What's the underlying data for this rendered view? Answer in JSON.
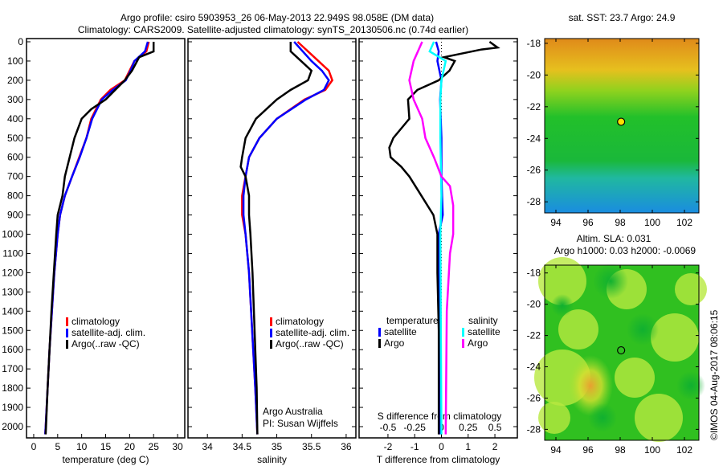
{
  "title_line1": "Argo profile: csiro 5903953_26 06-May-2013 22.949S 98.058E (DM data)",
  "title_line2": "Climatology: CARS2009. Satellite-adjusted climatology: synTS_20130506.nc (0.74d earlier)",
  "credit": "Argo Australia",
  "pi": "PI: Susan Wijffels",
  "timestamp": "©IMOS 04-Aug-2017 08:06:15",
  "colors": {
    "clim": "#ff0000",
    "sat": "#0000ff",
    "argo": "#000000",
    "sal_sat": "#00ffff",
    "sal_argo": "#ff00ff"
  },
  "chart_data": [
    {
      "type": "line",
      "id": "temp",
      "xlabel": "temperature (deg C)",
      "ylabel": "",
      "xlim": [
        -1.5,
        31.5
      ],
      "ylim": [
        2040,
        0
      ],
      "xticks": [
        0,
        5,
        10,
        15,
        20,
        25,
        30
      ],
      "yticks": [
        0,
        100,
        200,
        300,
        400,
        500,
        600,
        700,
        800,
        900,
        1000,
        1100,
        1200,
        1300,
        1400,
        1500,
        1600,
        1700,
        1800,
        1900,
        2000
      ],
      "legend": [
        "climatology",
        "satellite-adj. clim.",
        "Argo(..raw -QC)"
      ],
      "series": [
        {
          "name": "climatology",
          "color": "clim",
          "points": [
            [
              24.0,
              0
            ],
            [
              23.5,
              50
            ],
            [
              21,
              100
            ],
            [
              20,
              150
            ],
            [
              19,
              200
            ],
            [
              16,
              250
            ],
            [
              14,
              300
            ],
            [
              12,
              400
            ],
            [
              11,
              500
            ],
            [
              9.5,
              600
            ],
            [
              8,
              700
            ],
            [
              6.5,
              800
            ],
            [
              5.5,
              900
            ],
            [
              5,
              1000
            ],
            [
              4.3,
              1200
            ],
            [
              3.8,
              1400
            ],
            [
              3.3,
              1600
            ],
            [
              2.9,
              1800
            ],
            [
              2.5,
              2000
            ],
            [
              2.4,
              2040
            ]
          ]
        },
        {
          "name": "satellite-adj. clim.",
          "color": "sat",
          "points": [
            [
              23.8,
              0
            ],
            [
              23.2,
              50
            ],
            [
              21,
              100
            ],
            [
              20.2,
              150
            ],
            [
              19.2,
              200
            ],
            [
              16.5,
              250
            ],
            [
              14.2,
              300
            ],
            [
              12.2,
              400
            ],
            [
              11,
              500
            ],
            [
              9.6,
              600
            ],
            [
              8,
              700
            ],
            [
              6.5,
              800
            ],
            [
              5.5,
              900
            ],
            [
              5,
              1000
            ],
            [
              4.3,
              1200
            ],
            [
              3.8,
              1400
            ],
            [
              3.3,
              1600
            ],
            [
              2.9,
              1800
            ],
            [
              2.5,
              2000
            ],
            [
              2.4,
              2040
            ]
          ]
        },
        {
          "name": "Argo(..raw -QC)",
          "color": "argo",
          "points": [
            [
              25,
              0
            ],
            [
              25,
              50
            ],
            [
              22,
              80
            ],
            [
              20.5,
              150
            ],
            [
              19,
              200
            ],
            [
              17,
              250
            ],
            [
              15,
              300
            ],
            [
              12,
              350
            ],
            [
              10,
              400
            ],
            [
              8.5,
              500
            ],
            [
              7.5,
              600
            ],
            [
              6.5,
              700
            ],
            [
              6,
              800
            ],
            [
              5,
              900
            ],
            [
              4.7,
              1000
            ],
            [
              4.2,
              1200
            ],
            [
              3.7,
              1400
            ],
            [
              3.3,
              1600
            ],
            [
              2.9,
              1800
            ],
            [
              2.5,
              2040
            ]
          ]
        }
      ]
    },
    {
      "type": "line",
      "id": "sal",
      "xlabel": "salinity",
      "ylabel": "",
      "xlim": [
        33.72,
        36.14
      ],
      "ylim": [
        2040,
        0
      ],
      "xticks": [
        34,
        34.5,
        35,
        35.5,
        36
      ],
      "legend": [
        "climatology",
        "satellite-adj. clim.",
        "Argo(..raw -QC)"
      ],
      "series": [
        {
          "name": "climatology",
          "color": "clim",
          "points": [
            [
              35.3,
              0
            ],
            [
              35.6,
              100
            ],
            [
              35.75,
              150
            ],
            [
              35.8,
              200
            ],
            [
              35.7,
              250
            ],
            [
              35.4,
              300
            ],
            [
              35.0,
              400
            ],
            [
              34.75,
              500
            ],
            [
              34.6,
              600
            ],
            [
              34.55,
              700
            ],
            [
              34.5,
              800
            ],
            [
              34.5,
              900
            ],
            [
              34.55,
              1000
            ],
            [
              34.6,
              1200
            ],
            [
              34.63,
              1400
            ],
            [
              34.66,
              1600
            ],
            [
              34.69,
              1800
            ],
            [
              34.72,
              2040
            ]
          ]
        },
        {
          "name": "satellite-adj. clim.",
          "color": "sat",
          "points": [
            [
              35.25,
              0
            ],
            [
              35.5,
              100
            ],
            [
              35.65,
              150
            ],
            [
              35.75,
              200
            ],
            [
              35.68,
              250
            ],
            [
              35.42,
              300
            ],
            [
              35.0,
              400
            ],
            [
              34.75,
              500
            ],
            [
              34.6,
              600
            ],
            [
              34.55,
              700
            ],
            [
              34.52,
              800
            ],
            [
              34.52,
              900
            ],
            [
              34.55,
              1000
            ],
            [
              34.6,
              1200
            ],
            [
              34.63,
              1400
            ],
            [
              34.66,
              1600
            ],
            [
              34.69,
              1800
            ],
            [
              34.72,
              2040
            ]
          ]
        },
        {
          "name": "Argo(..raw -QC)",
          "color": "argo",
          "points": [
            [
              35.2,
              0
            ],
            [
              35.2,
              50
            ],
            [
              35.35,
              100
            ],
            [
              35.5,
              150
            ],
            [
              35.45,
              200
            ],
            [
              35.2,
              250
            ],
            [
              35.0,
              300
            ],
            [
              34.7,
              400
            ],
            [
              34.55,
              500
            ],
            [
              34.5,
              600
            ],
            [
              34.48,
              650
            ],
            [
              34.55,
              700
            ],
            [
              34.6,
              800
            ],
            [
              34.6,
              900
            ],
            [
              34.62,
              1000
            ],
            [
              34.65,
              1200
            ],
            [
              34.67,
              1400
            ],
            [
              34.69,
              1600
            ],
            [
              34.71,
              1800
            ],
            [
              34.72,
              2040
            ]
          ]
        }
      ]
    },
    {
      "type": "line",
      "id": "diff",
      "xlabel": "T difference from climatology",
      "x2label": "S difference from climatology",
      "xlim": [
        -3.08,
        2.84
      ],
      "ylim": [
        2040,
        0
      ],
      "xticks": [
        -2,
        -1,
        0,
        1,
        2
      ],
      "x2ticks": [
        -0.5,
        -0.25,
        0,
        0.25,
        0.5
      ],
      "legend_t_title": "temperature",
      "legend_s_title": "salinity",
      "legend": [
        "satellite",
        "Argo",
        "satellite",
        "Argo"
      ],
      "series": [
        {
          "name": "T satellite",
          "color": "sat",
          "var": "T",
          "points": [
            [
              -0.2,
              0
            ],
            [
              -0.1,
              50
            ],
            [
              -0.15,
              100
            ],
            [
              0,
              200
            ],
            [
              -0.05,
              300
            ],
            [
              0,
              500
            ],
            [
              0,
              700
            ],
            [
              0.05,
              900
            ],
            [
              -0.1,
              1000
            ],
            [
              -0.1,
              1200
            ],
            [
              -0.05,
              1500
            ],
            [
              -0.05,
              2040
            ]
          ]
        },
        {
          "name": "T Argo",
          "color": "argo",
          "var": "T",
          "points": [
            [
              1.8,
              0
            ],
            [
              2.1,
              30
            ],
            [
              1.5,
              40
            ],
            [
              0.1,
              80
            ],
            [
              0.5,
              100
            ],
            [
              0.3,
              150
            ],
            [
              -0.1,
              200
            ],
            [
              -0.9,
              250
            ],
            [
              -1.25,
              300
            ],
            [
              -1.2,
              400
            ],
            [
              -1.8,
              500
            ],
            [
              -1.95,
              550
            ],
            [
              -1.9,
              600
            ],
            [
              -1.5,
              650
            ],
            [
              -1.2,
              700
            ],
            [
              -0.75,
              800
            ],
            [
              -0.3,
              900
            ],
            [
              -0.15,
              1000
            ],
            [
              -0.15,
              1200
            ],
            [
              -0.1,
              1500
            ],
            [
              -0.1,
              2040
            ]
          ]
        },
        {
          "name": "S satellite",
          "color": "sal_sat",
          "var": "S",
          "points": [
            [
              -0.07,
              0
            ],
            [
              -0.11,
              50
            ],
            [
              0.04,
              100
            ],
            [
              0.0,
              200
            ],
            [
              -0.01,
              300
            ],
            [
              -0.01,
              500
            ],
            [
              0.0,
              800
            ],
            [
              -0.01,
              1000
            ],
            [
              0.0,
              2040
            ]
          ]
        },
        {
          "name": "S Argo",
          "color": "sal_argo",
          "var": "S",
          "points": [
            [
              -0.18,
              0
            ],
            [
              -0.26,
              100
            ],
            [
              -0.3,
              200
            ],
            [
              -0.26,
              300
            ],
            [
              -0.18,
              400
            ],
            [
              -0.15,
              500
            ],
            [
              -0.07,
              600
            ],
            [
              0.0,
              700
            ],
            [
              0.08,
              750
            ],
            [
              0.11,
              850
            ],
            [
              0.11,
              1000
            ],
            [
              0.08,
              1100
            ],
            [
              0.05,
              1400
            ],
            [
              0.04,
              2040
            ]
          ]
        }
      ]
    },
    {
      "type": "heatmap",
      "id": "sst",
      "title": "sat. SST: 23.7  Argo: 24.9",
      "xlim": [
        93.3,
        102.9
      ],
      "ylim": [
        -28.7,
        -17.7
      ],
      "xticks": [
        94,
        96,
        98,
        100,
        102
      ],
      "yticks": [
        -18,
        -20,
        -22,
        -24,
        -26,
        -28
      ],
      "marker": [
        98.058,
        -22.949
      ]
    },
    {
      "type": "heatmap",
      "id": "sla",
      "title": "Altim. SLA: 0.031",
      "subtitle": "Argo h1000: 0.03 h2000: -0.0069",
      "xlim": [
        93.3,
        102.9
      ],
      "ylim": [
        -28.7,
        -17.5
      ],
      "xticks": [
        94,
        96,
        98,
        100,
        102
      ],
      "yticks": [
        -18,
        -20,
        -22,
        -24,
        -26,
        -28
      ],
      "marker": [
        98.058,
        -22.949
      ]
    }
  ]
}
